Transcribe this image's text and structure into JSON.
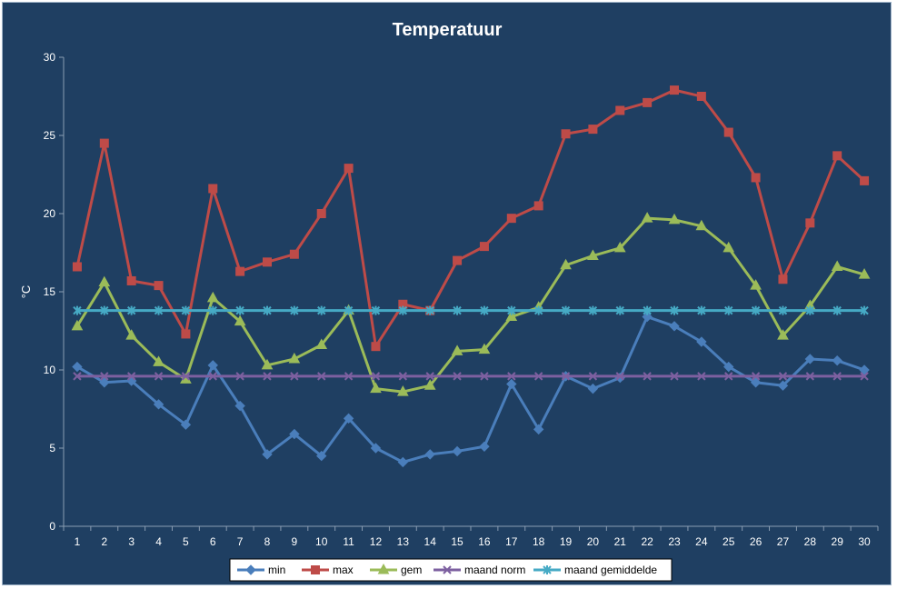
{
  "chart_data": {
    "type": "line",
    "title": "Temperatuur",
    "xlabel": "",
    "ylabel": "°C",
    "ylim": [
      0,
      30
    ],
    "yticks": [
      "0",
      "5",
      "10",
      "15",
      "20",
      "25",
      "30"
    ],
    "categories": [
      "1",
      "2",
      "3",
      "4",
      "5",
      "6",
      "7",
      "8",
      "9",
      "10",
      "11",
      "12",
      "13",
      "14",
      "15",
      "16",
      "17",
      "18",
      "19",
      "20",
      "21",
      "22",
      "23",
      "24",
      "25",
      "26",
      "27",
      "28",
      "29",
      "30"
    ],
    "grid": false,
    "legend_position": "bottom",
    "background_color": "#1f3f62",
    "series": [
      {
        "name": "min",
        "color": "#4a7ebb",
        "marker": "diamond",
        "values": [
          10.2,
          9.2,
          9.3,
          7.8,
          6.5,
          10.3,
          7.7,
          4.6,
          5.9,
          4.5,
          6.9,
          5.0,
          4.1,
          4.6,
          4.8,
          5.1,
          9.1,
          6.2,
          9.6,
          8.8,
          9.5,
          13.4,
          12.8,
          11.8,
          10.2,
          9.2,
          9.0,
          10.7,
          10.6,
          10.0
        ]
      },
      {
        "name": "max",
        "color": "#be4b48",
        "marker": "square",
        "values": [
          16.6,
          24.5,
          15.7,
          15.4,
          12.3,
          21.6,
          16.3,
          16.9,
          17.4,
          20.0,
          22.9,
          11.5,
          14.2,
          13.8,
          17.0,
          17.9,
          19.7,
          20.5,
          25.1,
          25.4,
          26.6,
          27.1,
          27.9,
          27.5,
          25.2,
          22.3,
          15.8,
          19.4,
          23.7,
          22.1
        ]
      },
      {
        "name": "gem",
        "color": "#9bbb59",
        "marker": "triangle",
        "values": [
          12.8,
          15.6,
          12.2,
          10.5,
          9.4,
          14.6,
          13.1,
          10.3,
          10.7,
          11.6,
          13.8,
          8.8,
          8.6,
          9.0,
          11.2,
          11.3,
          13.4,
          14.0,
          16.7,
          17.3,
          17.8,
          19.7,
          19.6,
          19.2,
          17.8,
          15.4,
          12.2,
          14.1,
          16.6,
          16.1
        ]
      },
      {
        "name": "maand norm",
        "color": "#7d60a0",
        "marker": "x",
        "values": [
          9.6,
          9.6,
          9.6,
          9.6,
          9.6,
          9.6,
          9.6,
          9.6,
          9.6,
          9.6,
          9.6,
          9.6,
          9.6,
          9.6,
          9.6,
          9.6,
          9.6,
          9.6,
          9.6,
          9.6,
          9.6,
          9.6,
          9.6,
          9.6,
          9.6,
          9.6,
          9.6,
          9.6,
          9.6,
          9.6
        ]
      },
      {
        "name": "maand gemiddelde",
        "color": "#46aac5",
        "marker": "star",
        "values": [
          13.8,
          13.8,
          13.8,
          13.8,
          13.8,
          13.8,
          13.8,
          13.8,
          13.8,
          13.8,
          13.8,
          13.8,
          13.8,
          13.8,
          13.8,
          13.8,
          13.8,
          13.8,
          13.8,
          13.8,
          13.8,
          13.8,
          13.8,
          13.8,
          13.8,
          13.8,
          13.8,
          13.8,
          13.8,
          13.8
        ]
      }
    ]
  }
}
